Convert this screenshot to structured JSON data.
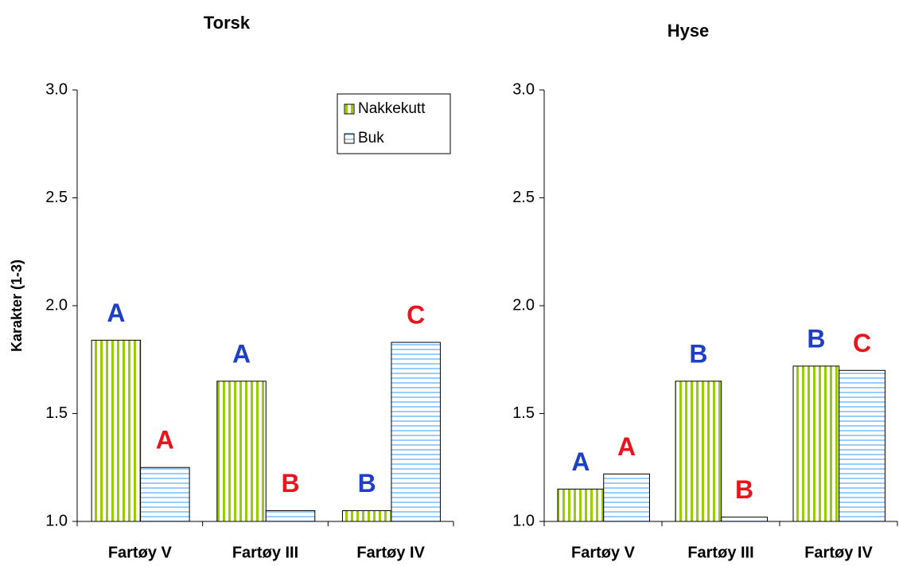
{
  "chart_data": [
    {
      "type": "bar",
      "title": "Torsk",
      "ylabel": "Karakter (1-3)",
      "categories": [
        "Fartøy V",
        "Fartøy III",
        "Fartøy IV"
      ],
      "series": [
        {
          "name": "Nakkekutt",
          "color": "#99cc00",
          "values": [
            1.84,
            1.65,
            1.05
          ],
          "labels": [
            "A",
            "A",
            "B"
          ],
          "label_color": "#1f3fc4"
        },
        {
          "name": "Buk",
          "color": "#99ccff",
          "values": [
            1.25,
            1.05,
            1.83
          ],
          "labels": [
            "A",
            "B",
            "C"
          ],
          "label_color": "#e8141e"
        }
      ],
      "ylim": [
        1,
        3
      ],
      "yticks": [
        {
          "value": 1,
          "label": "1.0"
        },
        {
          "value": 1.5,
          "label": "1.5"
        },
        {
          "value": 2,
          "label": "2.0"
        },
        {
          "value": 2.5,
          "label": "2.5"
        },
        {
          "value": 3,
          "label": "3.0"
        }
      ],
      "legend": "top-right"
    },
    {
      "type": "bar",
      "title": "Hyse",
      "categories": [
        "Fartøy V",
        "Fartøy III",
        "Fartøy IV"
      ],
      "series": [
        {
          "color": "#99cc00",
          "values": [
            1.15,
            1.65,
            1.72
          ],
          "labels": [
            "A",
            "B",
            "B"
          ],
          "label_color": "#1f3fc4"
        },
        {
          "color": "#99ccff",
          "values": [
            1.22,
            1.02,
            1.7
          ],
          "labels": [
            "A",
            "B",
            "C"
          ],
          "label_color": "#e8141e"
        }
      ],
      "ylim": [
        1,
        3
      ],
      "yticks": [
        {
          "value": 1,
          "label": "1.0"
        },
        {
          "value": 1.5,
          "label": "1.5"
        },
        {
          "value": 2,
          "label": "2.0"
        },
        {
          "value": 2.5,
          "label": "2.5"
        },
        {
          "value": 3,
          "label": "3.0"
        }
      ]
    }
  ]
}
